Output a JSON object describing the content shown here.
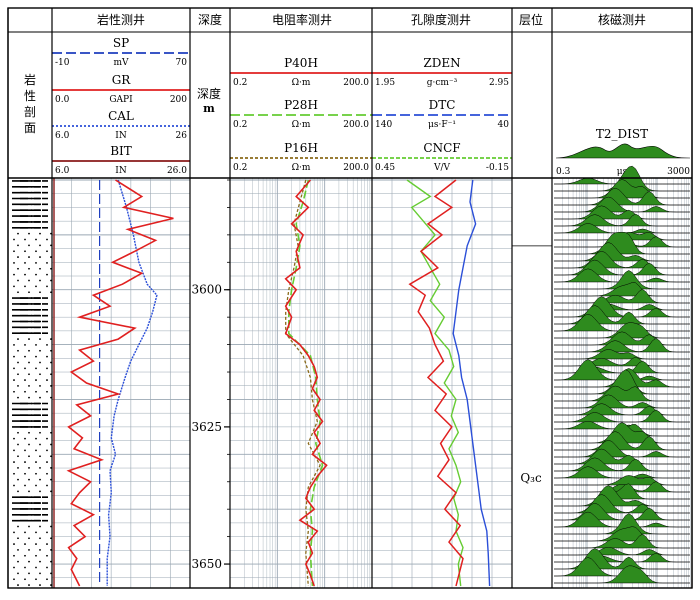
{
  "columns": {
    "lithology": "岩性剖面",
    "lithology_tracks": "岩性测井",
    "depth": "深度",
    "resistivity": "电阻率测井",
    "porosity": "孔隙度测井",
    "layer": "层位",
    "nmr": "核磁测井"
  },
  "depth_header": {
    "label": "深度",
    "unit": "m"
  },
  "curves": {
    "SP": {
      "name": "SP",
      "unit": "mV",
      "min": "-10",
      "max": "70",
      "color": "#1f3fbf"
    },
    "GR": {
      "name": "GR",
      "unit": "GAPI",
      "min": "0.0",
      "max": "200",
      "color": "#e02020"
    },
    "CAL": {
      "name": "CAL",
      "unit": "IN",
      "min": "6.0",
      "max": "26",
      "color": "#2b4fd8"
    },
    "BIT": {
      "name": "BIT",
      "unit": "IN",
      "min": "6.0",
      "max": "26.0",
      "color": "#8a1a1a"
    },
    "P40H": {
      "name": "P40H",
      "unit": "Ω·m",
      "min": "0.2",
      "max": "200.0",
      "color": "#e02020"
    },
    "P28H": {
      "name": "P28H",
      "unit": "Ω·m",
      "min": "0.2",
      "max": "200.0",
      "color": "#66cc33"
    },
    "P16H": {
      "name": "P16H",
      "unit": "Ω·m",
      "min": "0.2",
      "max": "200.0",
      "color": "#8a6a1a"
    },
    "ZDEN": {
      "name": "ZDEN",
      "unit": "g·cm⁻³",
      "min": "1.95",
      "max": "2.95",
      "color": "#e02020"
    },
    "DTC": {
      "name": "DTC",
      "unit": "μs·F⁻¹",
      "min": "140",
      "max": "40",
      "color": "#2b4fd8"
    },
    "CNCF": {
      "name": "CNCF",
      "unit": "V/V",
      "min": "0.45",
      "max": "-0.15",
      "color": "#66cc33"
    },
    "T2": {
      "name": "T2_DIST",
      "unit": "μs",
      "min": "0.3",
      "max": "3000",
      "color": "#2e8b1e"
    }
  },
  "layer_label": "Q₃c",
  "colors": {
    "grid": "#9aa7b3",
    "fill_green": "#2e8b1e",
    "border": "#000000"
  },
  "chart_data": {
    "type": "line",
    "title": "",
    "depth_axis": {
      "label": "深度 m",
      "ticks": [
        3600,
        3625,
        3650
      ],
      "range": [
        3580,
        3654
      ]
    },
    "series": [
      {
        "name": "SP",
        "unit": "mV",
        "range": [
          -10,
          70
        ],
        "values": [
          [
            3580,
            17.6
          ],
          [
            3654,
            17.6
          ]
        ]
      },
      {
        "name": "GR",
        "unit": "GAPI",
        "range": [
          0,
          200
        ],
        "values": [
          [
            3580,
            92
          ],
          [
            3583,
            130
          ],
          [
            3585,
            104
          ],
          [
            3587,
            176
          ],
          [
            3589,
            110
          ],
          [
            3591,
            150
          ],
          [
            3593,
            120
          ],
          [
            3595,
            88
          ],
          [
            3597,
            130
          ],
          [
            3599,
            102
          ],
          [
            3601,
            60
          ],
          [
            3603,
            84
          ],
          [
            3605,
            40
          ],
          [
            3607,
            120
          ],
          [
            3609,
            96
          ],
          [
            3611,
            40
          ],
          [
            3613,
            60
          ],
          [
            3615,
            28
          ],
          [
            3617,
            50
          ],
          [
            3619,
            96
          ],
          [
            3621,
            36
          ],
          [
            3623,
            56
          ],
          [
            3625,
            24
          ],
          [
            3627,
            44
          ],
          [
            3629,
            32
          ],
          [
            3631,
            72
          ],
          [
            3633,
            24
          ],
          [
            3635,
            56
          ],
          [
            3637,
            40
          ],
          [
            3639,
            28
          ],
          [
            3641,
            60
          ],
          [
            3643,
            32
          ],
          [
            3645,
            48
          ],
          [
            3647,
            24
          ],
          [
            3649,
            36
          ],
          [
            3651,
            28
          ],
          [
            3654,
            40
          ]
        ]
      },
      {
        "name": "CAL",
        "unit": "IN",
        "range": [
          6,
          26
        ],
        "values": [
          [
            3580,
            15.6
          ],
          [
            3585,
            16.8
          ],
          [
            3590,
            17.8
          ],
          [
            3595,
            18.6
          ],
          [
            3599,
            19.8
          ],
          [
            3601,
            21.2
          ],
          [
            3604,
            20.6
          ],
          [
            3607,
            19.8
          ],
          [
            3610,
            18.6
          ],
          [
            3613,
            17.4
          ],
          [
            3616,
            16.6
          ],
          [
            3620,
            15.6
          ],
          [
            3623,
            15.0
          ],
          [
            3627,
            14.6
          ],
          [
            3630,
            15.2
          ],
          [
            3633,
            14.4
          ],
          [
            3637,
            14.6
          ],
          [
            3641,
            14.2
          ],
          [
            3645,
            14.4
          ],
          [
            3649,
            14.0
          ],
          [
            3654,
            14.0
          ]
        ]
      },
      {
        "name": "P40H",
        "unit": "Ω·m",
        "range": [
          0.2,
          200
        ],
        "values": [
          [
            3580,
            10
          ],
          [
            3583,
            5
          ],
          [
            3585,
            9
          ],
          [
            3588,
            4
          ],
          [
            3590,
            7
          ],
          [
            3593,
            5
          ],
          [
            3596,
            6
          ],
          [
            3598,
            3
          ],
          [
            3600,
            5
          ],
          [
            3603,
            3
          ],
          [
            3605,
            4
          ],
          [
            3608,
            3
          ],
          [
            3610,
            6
          ],
          [
            3612,
            9
          ],
          [
            3614,
            12
          ],
          [
            3616,
            14
          ],
          [
            3618,
            11
          ],
          [
            3620,
            16
          ],
          [
            3622,
            12
          ],
          [
            3624,
            18
          ],
          [
            3626,
            12
          ],
          [
            3628,
            16
          ],
          [
            3630,
            11
          ],
          [
            3632,
            22
          ],
          [
            3634,
            14
          ],
          [
            3636,
            10
          ],
          [
            3638,
            8
          ],
          [
            3640,
            12
          ],
          [
            3642,
            6
          ],
          [
            3644,
            14
          ],
          [
            3646,
            9
          ],
          [
            3648,
            11
          ],
          [
            3650,
            8
          ],
          [
            3652,
            10
          ],
          [
            3654,
            12
          ]
        ]
      },
      {
        "name": "P28H",
        "unit": "Ω·m",
        "range": [
          0.2,
          200
        ],
        "values": [
          [
            3580,
            9
          ],
          [
            3584,
            7
          ],
          [
            3588,
            5
          ],
          [
            3592,
            6
          ],
          [
            3596,
            5
          ],
          [
            3600,
            4
          ],
          [
            3604,
            3.5
          ],
          [
            3608,
            3.5
          ],
          [
            3612,
            10
          ],
          [
            3616,
            13
          ],
          [
            3620,
            14
          ],
          [
            3624,
            16
          ],
          [
            3628,
            13
          ],
          [
            3632,
            18
          ],
          [
            3636,
            12
          ],
          [
            3640,
            10
          ],
          [
            3644,
            11
          ],
          [
            3648,
            10
          ],
          [
            3654,
            11
          ]
        ]
      },
      {
        "name": "P16H",
        "unit": "Ω·m",
        "range": [
          0.2,
          200
        ],
        "values": [
          [
            3580,
            8
          ],
          [
            3584,
            6
          ],
          [
            3588,
            4.5
          ],
          [
            3592,
            5.5
          ],
          [
            3596,
            4.5
          ],
          [
            3600,
            3.5
          ],
          [
            3604,
            3
          ],
          [
            3608,
            3
          ],
          [
            3612,
            7
          ],
          [
            3616,
            10
          ],
          [
            3620,
            11
          ],
          [
            3624,
            14
          ],
          [
            3628,
            9
          ],
          [
            3632,
            16
          ],
          [
            3636,
            9
          ],
          [
            3640,
            8
          ],
          [
            3644,
            9
          ],
          [
            3648,
            8
          ],
          [
            3654,
            9
          ]
        ]
      },
      {
        "name": "ZDEN",
        "unit": "g·cm⁻³",
        "range": [
          1.95,
          2.95
        ],
        "values": [
          [
            3580,
            2.55
          ],
          [
            3583,
            2.4
          ],
          [
            3585,
            2.52
          ],
          [
            3588,
            2.35
          ],
          [
            3590,
            2.45
          ],
          [
            3593,
            2.3
          ],
          [
            3596,
            2.42
          ],
          [
            3599,
            2.22
          ],
          [
            3601,
            2.33
          ],
          [
            3604,
            2.28
          ],
          [
            3607,
            2.36
          ],
          [
            3610,
            2.4
          ],
          [
            3613,
            2.46
          ],
          [
            3616,
            2.35
          ],
          [
            3619,
            2.48
          ],
          [
            3622,
            2.4
          ],
          [
            3625,
            2.52
          ],
          [
            3628,
            2.44
          ],
          [
            3631,
            2.5
          ],
          [
            3634,
            2.42
          ],
          [
            3637,
            2.55
          ],
          [
            3640,
            2.47
          ],
          [
            3643,
            2.58
          ],
          [
            3646,
            2.5
          ],
          [
            3649,
            2.6
          ],
          [
            3654,
            2.55
          ]
        ]
      },
      {
        "name": "DTC",
        "unit": "μs·F⁻¹",
        "range": [
          140,
          40
        ],
        "values": [
          [
            3580,
            68
          ],
          [
            3584,
            70
          ],
          [
            3588,
            66
          ],
          [
            3592,
            72
          ],
          [
            3596,
            75
          ],
          [
            3600,
            78
          ],
          [
            3604,
            80
          ],
          [
            3608,
            82
          ],
          [
            3612,
            78
          ],
          [
            3616,
            76
          ],
          [
            3620,
            72
          ],
          [
            3624,
            70
          ],
          [
            3628,
            68
          ],
          [
            3632,
            66
          ],
          [
            3636,
            64
          ],
          [
            3640,
            62
          ],
          [
            3644,
            58
          ],
          [
            3648,
            57
          ],
          [
            3654,
            56
          ]
        ]
      },
      {
        "name": "CNCF",
        "unit": "V/V",
        "range": [
          0.45,
          -0.15
        ],
        "values": [
          [
            3580,
            0.3
          ],
          [
            3583,
            0.2
          ],
          [
            3585,
            0.28
          ],
          [
            3588,
            0.22
          ],
          [
            3590,
            0.18
          ],
          [
            3593,
            0.24
          ],
          [
            3596,
            0.2
          ],
          [
            3599,
            0.16
          ],
          [
            3602,
            0.2
          ],
          [
            3605,
            0.14
          ],
          [
            3608,
            0.18
          ],
          [
            3611,
            0.12
          ],
          [
            3614,
            0.1
          ],
          [
            3617,
            0.14
          ],
          [
            3620,
            0.09
          ],
          [
            3623,
            0.11
          ],
          [
            3626,
            0.08
          ],
          [
            3629,
            0.12
          ],
          [
            3632,
            0.09
          ],
          [
            3635,
            0.07
          ],
          [
            3638,
            0.1
          ],
          [
            3641,
            0.08
          ],
          [
            3644,
            0.09
          ],
          [
            3647,
            0.06
          ],
          [
            3650,
            0.08
          ],
          [
            3654,
            0.07
          ]
        ]
      }
    ]
  }
}
